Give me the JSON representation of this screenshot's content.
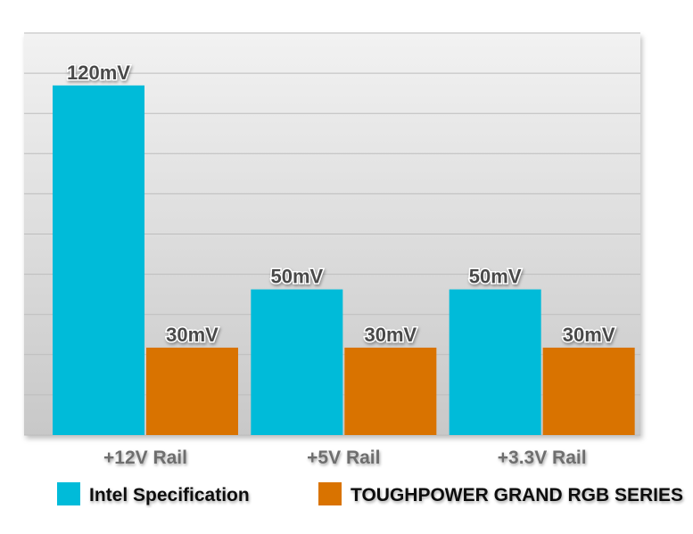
{
  "chart_data": {
    "type": "bar",
    "title": "",
    "xlabel": "",
    "ylabel": "",
    "categories": [
      "+12V Rail",
      "+5V Rail",
      "+3.3V Rail"
    ],
    "series": [
      {
        "name": "Intel Specification",
        "color": "#00bbd9",
        "values": [
          120,
          50,
          50
        ],
        "labels": [
          "120mV",
          "50mV",
          "50mV"
        ]
      },
      {
        "name": "TOUGHPOWER GRAND RGB SERIES",
        "color": "#d97300",
        "values": [
          30,
          30,
          30
        ],
        "labels": [
          "30mV",
          "30mV",
          "30mV"
        ]
      }
    ],
    "ylim": [
      0,
      138
    ],
    "grid": true,
    "legend": "bottom"
  }
}
